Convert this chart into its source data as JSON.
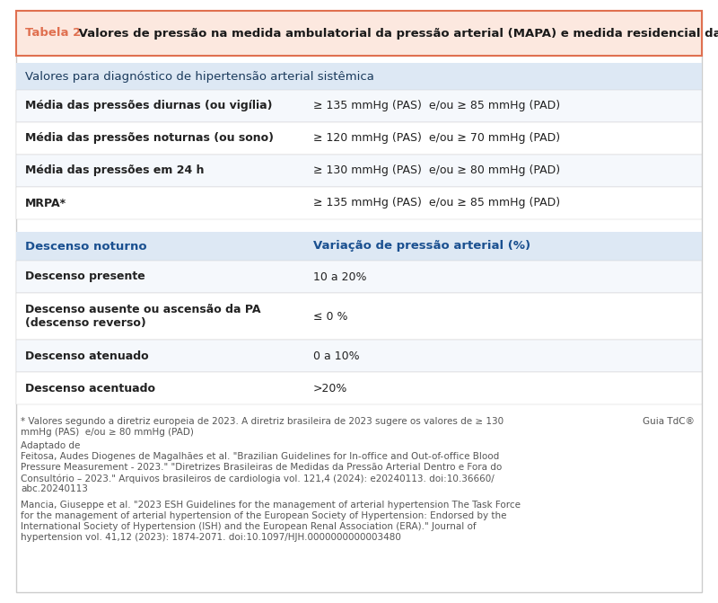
{
  "title_prefix": "Tabela 2.",
  "title_text": " Valores de pressão na medida ambulatorial da pressão arterial (MAPA) e medida residencial da pressão arterial (MRPA)",
  "title_bg": "#fce8df",
  "title_border": "#e07050",
  "title_prefix_color": "#e07050",
  "title_text_color": "#1a1a1a",
  "section1_header": "Valores para diagnóstico de hipertensão arterial sistêmica",
  "section1_header_bg": "#dde8f4",
  "section1_header_color": "#1a3a5c",
  "table1_rows": [
    [
      "Média das pressões diurnas (ou vigília)",
      "≥ 135 mmHg (PAS)  e/ou ≥ 85 mmHg (PAD)"
    ],
    [
      "Média das pressões noturnas (ou sono)",
      "≥ 120 mmHg (PAS)  e/ou ≥ 70 mmHg (PAD)"
    ],
    [
      "Média das pressões em 24 h",
      "≥ 130 mmHg (PAS)  e/ou ≥ 80 mmHg (PAD)"
    ],
    [
      "MRPA*",
      "≥ 135 mmHg (PAS)  e/ou ≥ 85 mmHg (PAD)"
    ]
  ],
  "table1_row_bg": [
    "#f5f8fc",
    "#ffffff",
    "#f5f8fc",
    "#ffffff"
  ],
  "table1_text_color": "#222222",
  "section2_header_col1": "Descenso noturno",
  "section2_header_col2": "Variação de pressão arterial (%)",
  "section2_header_bg": "#dde8f4",
  "section2_header_color": "#1a5090",
  "table2_rows": [
    [
      "Descenso presente",
      "10 a 20%"
    ],
    [
      "Descenso ausente ou ascensão da PA\n(descenso reverso)",
      "≤ 0 %"
    ],
    [
      "Descenso atenuado",
      "0 a 10%"
    ],
    [
      "Descenso acentuado",
      ">20%"
    ]
  ],
  "table2_row_bg": [
    "#f5f8fc",
    "#ffffff",
    "#f5f8fc",
    "#ffffff"
  ],
  "table2_text_color": "#222222",
  "footnote1_line1": "* Valores segundo a diretriz europeia de 2023. A diretriz brasileira de 2023 sugere os valores de ≥ 130",
  "footnote1_line2": "mmHg (PAS)  e/ou ≥ 80 mmHg (PAD)",
  "footnote2_lines": [
    "Adaptado de",
    "Feitosa, Audes Diogenes de Magalhães et al. \"Brazilian Guidelines for In-office and Out-of-office Blood",
    "Pressure Measurement - 2023.\" \"Diretrizes Brasileiras de Medidas da Pressão Arterial Dentro e Fora do",
    "Consultório – 2023.\" Arquivos brasileiros de cardiologia vol. 121,4 (2024): e20240113. doi:10.36660/",
    "abc.20240113"
  ],
  "footnote3_lines": [
    "Mancia, Giuseppe et al. \"2023 ESH Guidelines for the management of arterial hypertension The Task Force",
    "for the management of arterial hypertension of the European Society of Hypertension: Endorsed by the",
    "International Society of Hypertension (ISH) and the European Renal Association (ERA).\" Journal of",
    "hypertension vol. 41,12 (2023): 1874-2071. doi:10.1097/HJH.0000000000003480"
  ],
  "guia_text": "Guia TdC®",
  "footnote_color": "#555555",
  "background_color": "#ffffff",
  "border_color": "#cccccc",
  "col_split": 0.42
}
